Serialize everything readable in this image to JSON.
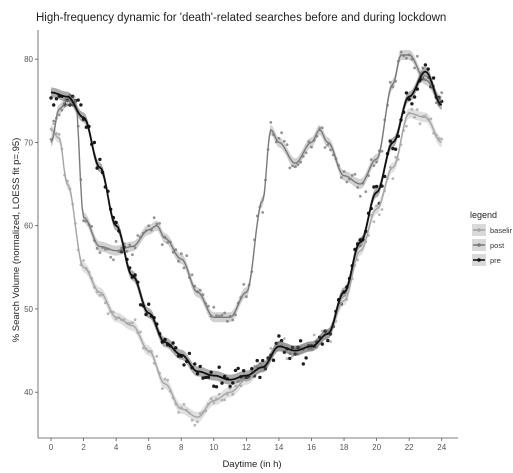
{
  "chart_data": {
    "type": "line",
    "title": "High-frequency dynamic for 'death'-related searches before and during lockdown",
    "xlabel": "Daytime (in h)",
    "ylabel": "% Search Volume (normalized, LOESS fit p=.95)",
    "xlim": [
      -0.8,
      25.0
    ],
    "ylim": [
      34.5,
      83.5
    ],
    "xticks": [
      0,
      2,
      4,
      6,
      8,
      10,
      12,
      14,
      16,
      18,
      20,
      22,
      24
    ],
    "yticks": [
      40,
      50,
      60,
      70,
      80
    ],
    "grid": false,
    "legend_title": "legend",
    "legend_placement": "right",
    "series": [
      {
        "name": "baseline",
        "color": "#a6a6a6",
        "points": [
          [
            0,
            71.5
          ],
          [
            0.5,
            70.5
          ],
          [
            1,
            65
          ],
          [
            2,
            55
          ],
          [
            3,
            52
          ],
          [
            4,
            49
          ],
          [
            5,
            48
          ],
          [
            6,
            45
          ],
          [
            7,
            41
          ],
          [
            8,
            38
          ],
          [
            9,
            37
          ],
          [
            10,
            39
          ],
          [
            11,
            40
          ],
          [
            12,
            41.5
          ],
          [
            13,
            43
          ],
          [
            14,
            45.5
          ],
          [
            15,
            45
          ],
          [
            16,
            45.5
          ],
          [
            17,
            47
          ],
          [
            18,
            51
          ],
          [
            19,
            57
          ],
          [
            20,
            62
          ],
          [
            21,
            67
          ],
          [
            22,
            73.5
          ],
          [
            23,
            73
          ],
          [
            24,
            70
          ]
        ]
      },
      {
        "name": "post",
        "color": "#7a7a7a",
        "points": [
          [
            0,
            70
          ],
          [
            0.5,
            74
          ],
          [
            1,
            75
          ],
          [
            1.5,
            75
          ],
          [
            2,
            61
          ],
          [
            3,
            57.5
          ],
          [
            4,
            57
          ],
          [
            5,
            57.5
          ],
          [
            6,
            59.5
          ],
          [
            6.5,
            60
          ],
          [
            7,
            58.5
          ],
          [
            8,
            56
          ],
          [
            9,
            52
          ],
          [
            10,
            49
          ],
          [
            11,
            49
          ],
          [
            12,
            52
          ],
          [
            13,
            63
          ],
          [
            13.5,
            71.5
          ],
          [
            14,
            70
          ],
          [
            15,
            67.5
          ],
          [
            16,
            70
          ],
          [
            16.5,
            71.5
          ],
          [
            17,
            70
          ],
          [
            18,
            66
          ],
          [
            19,
            65
          ],
          [
            20,
            68
          ],
          [
            21,
            77
          ],
          [
            21.5,
            80.5
          ],
          [
            22,
            80.5
          ],
          [
            23,
            77.5
          ],
          [
            24,
            75
          ]
        ]
      },
      {
        "name": "pre",
        "color": "#111111",
        "points": [
          [
            0,
            76
          ],
          [
            1,
            75.5
          ],
          [
            2,
            73
          ],
          [
            3,
            67
          ],
          [
            4,
            60
          ],
          [
            5,
            54
          ],
          [
            6,
            49.5
          ],
          [
            7,
            46
          ],
          [
            8,
            44.5
          ],
          [
            9,
            42.5
          ],
          [
            10,
            42
          ],
          [
            11,
            41.5
          ],
          [
            12,
            42
          ],
          [
            13,
            43
          ],
          [
            14,
            45.5
          ],
          [
            15,
            45
          ],
          [
            16,
            45.5
          ],
          [
            17,
            47
          ],
          [
            18,
            52
          ],
          [
            19,
            58
          ],
          [
            20,
            64
          ],
          [
            21,
            70
          ],
          [
            22,
            75.5
          ],
          [
            23,
            78.5
          ],
          [
            24,
            74.5
          ]
        ]
      }
    ],
    "legend_labels": [
      "baselir",
      "post",
      "pre"
    ]
  }
}
